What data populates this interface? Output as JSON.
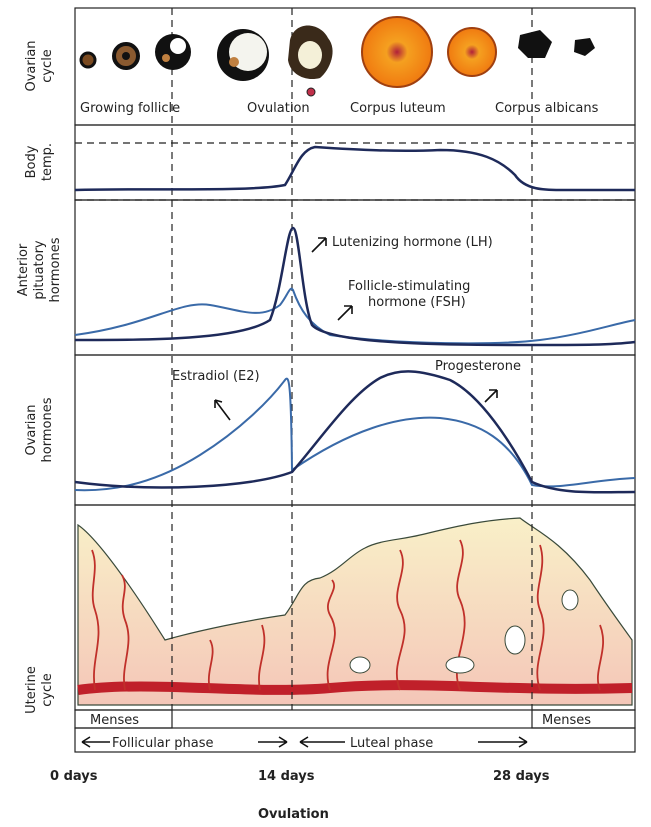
{
  "rows": [
    {
      "label_lines": [
        "Ovarian",
        "cycle"
      ]
    },
    {
      "label_lines": [
        "Body",
        "temp."
      ]
    },
    {
      "label_lines": [
        "Anterior",
        "pituatory",
        "hormones"
      ]
    },
    {
      "label_lines": [
        "Ovarian",
        "hormones"
      ]
    },
    {
      "label_lines": [
        "Uterine",
        "cycle"
      ]
    }
  ],
  "ovarian_stages": [
    "Growing follicle",
    "Ovulation",
    "Corpus luteum",
    "Corpus albicans"
  ],
  "curves": {
    "lh": "Lutenizing hormone (LH)",
    "fsh_lines": [
      "Follicle-stimulating",
      "hormone (FSH)"
    ],
    "estradiol": "Estradiol (E2)",
    "progesterone": "Progesterone"
  },
  "menses": [
    "Menses",
    "Menses"
  ],
  "phases": [
    "Follicular phase",
    "Luteal phase"
  ],
  "days": [
    "0 days",
    "14 days",
    "28 days"
  ],
  "ovulation": "Ovulation"
}
